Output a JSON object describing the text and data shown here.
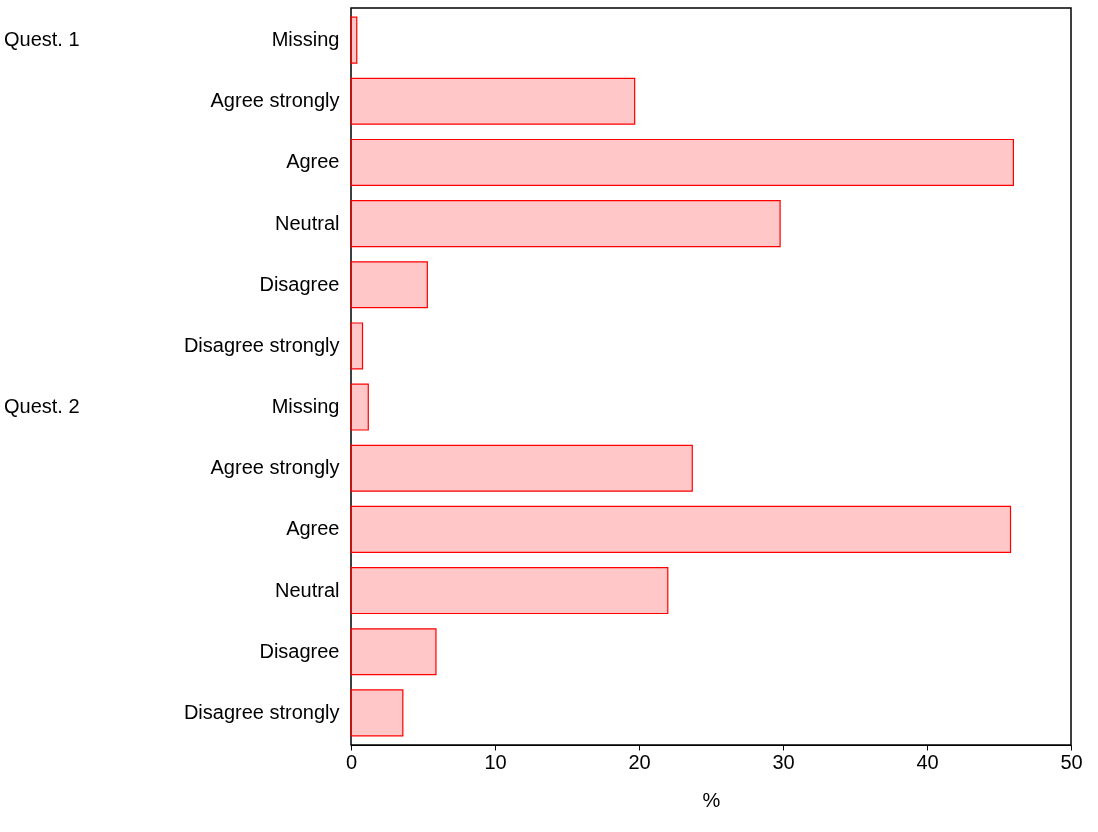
{
  "chart_data": {
    "type": "bar",
    "orientation": "horizontal",
    "xlabel": "%",
    "categories": [
      "Missing",
      "Agree strongly",
      "Agree",
      "Neutral",
      "Disagree",
      "Disagree strongly",
      "Missing",
      "Agree strongly",
      "Agree",
      "Neutral",
      "Disagree",
      "Disagree strongly"
    ],
    "values": [
      0.4,
      19.7,
      46.0,
      29.8,
      5.3,
      0.8,
      1.2,
      23.7,
      45.8,
      22.0,
      5.9,
      3.6
    ],
    "color": "#ff0000",
    "xlim": [
      0,
      50
    ],
    "xticks": [
      0,
      10,
      20,
      30,
      40,
      50
    ],
    "annotations": [
      "Quest. 1",
      "Quest. 2"
    ],
    "grid": false
  }
}
